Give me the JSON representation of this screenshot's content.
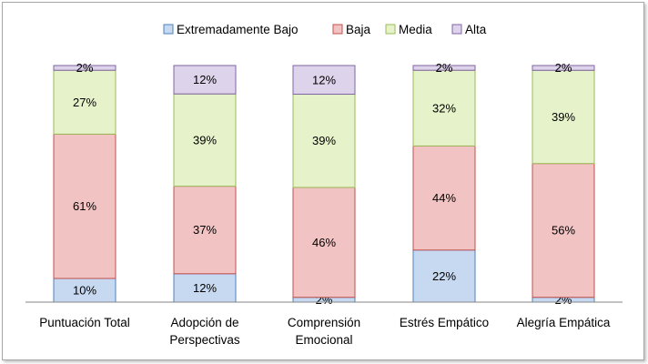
{
  "chart_data": {
    "type": "bar",
    "stacked": true,
    "percent": true,
    "title": "",
    "xlabel": "",
    "ylabel": "",
    "ylim": [
      0,
      100
    ],
    "grid": false,
    "legend_position": "top",
    "categories": [
      [
        "Puntuación Total"
      ],
      [
        "Adopción de",
        "Perspectivas"
      ],
      [
        "Comprensión",
        "Emocional"
      ],
      [
        "Estrés Empático"
      ],
      [
        "Alegría Empática"
      ]
    ],
    "series": [
      {
        "name": "Extremadamente Bajo",
        "color": "#c6d9f1",
        "stroke": "#4f81bd",
        "values": [
          10,
          12,
          2,
          22,
          2
        ]
      },
      {
        "name": "Baja",
        "color": "#f2c3c3",
        "stroke": "#c0504d",
        "values": [
          61,
          37,
          46,
          44,
          56
        ]
      },
      {
        "name": "Media",
        "color": "#e6f2c9",
        "stroke": "#9bbb59",
        "values": [
          27,
          39,
          39,
          32,
          39
        ]
      },
      {
        "name": "Alta",
        "color": "#ddd3ea",
        "stroke": "#8064a2",
        "values": [
          2,
          12,
          12,
          2,
          2
        ]
      }
    ],
    "data_labels": true,
    "label_suffix": "%"
  }
}
